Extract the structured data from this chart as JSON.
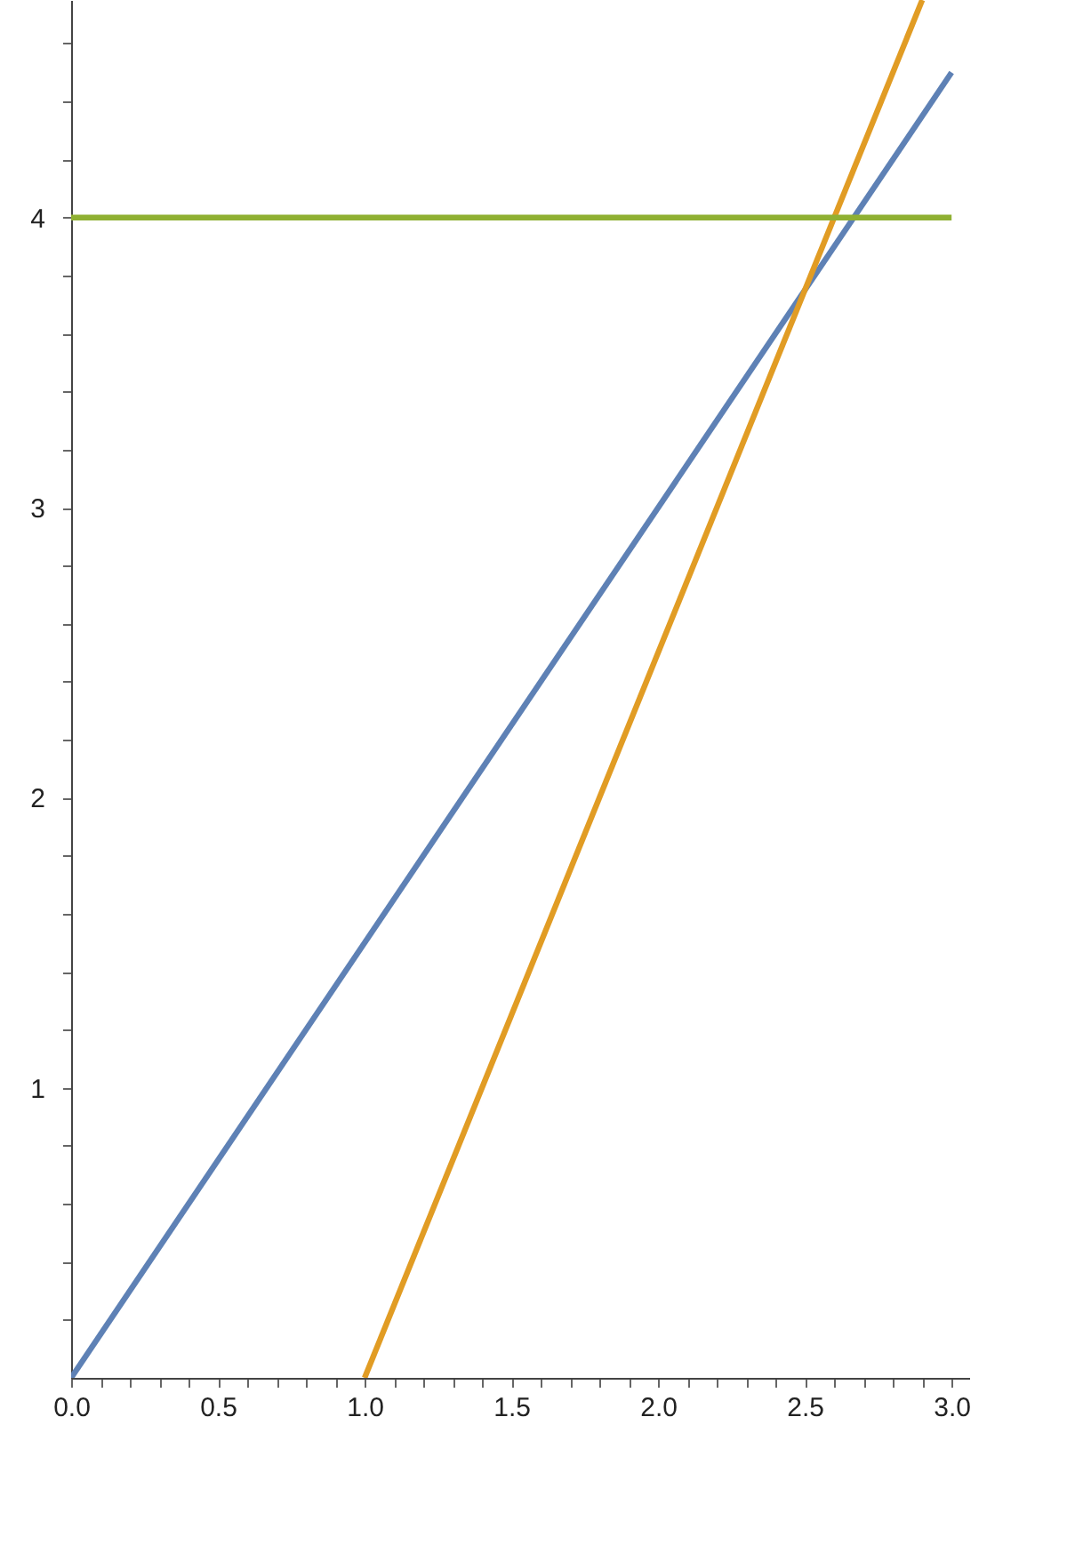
{
  "chart_data": {
    "type": "line",
    "xlim": [
      0,
      3.06
    ],
    "ylim": [
      0,
      4.75
    ],
    "xticks": [
      {
        "value": 0,
        "label": "0.0"
      },
      {
        "value": 0.1,
        "label": null
      },
      {
        "value": 0.2,
        "label": null
      },
      {
        "value": 0.3,
        "label": null
      },
      {
        "value": 0.4,
        "label": null
      },
      {
        "value": 0.5,
        "label": "0.5"
      },
      {
        "value": 0.6,
        "label": null
      },
      {
        "value": 0.7,
        "label": null
      },
      {
        "value": 0.8,
        "label": null
      },
      {
        "value": 0.9,
        "label": null
      },
      {
        "value": 1,
        "label": "1.0"
      },
      {
        "value": 1.1,
        "label": null
      },
      {
        "value": 1.2,
        "label": null
      },
      {
        "value": 1.3,
        "label": null
      },
      {
        "value": 1.4,
        "label": null
      },
      {
        "value": 1.5,
        "label": "1.5"
      },
      {
        "value": 1.6,
        "label": null
      },
      {
        "value": 1.7,
        "label": null
      },
      {
        "value": 1.8,
        "label": null
      },
      {
        "value": 1.9,
        "label": null
      },
      {
        "value": 2,
        "label": "2.0"
      },
      {
        "value": 2.1,
        "label": null
      },
      {
        "value": 2.2,
        "label": null
      },
      {
        "value": 2.3,
        "label": null
      },
      {
        "value": 2.4,
        "label": null
      },
      {
        "value": 2.5,
        "label": "2.5"
      },
      {
        "value": 2.6,
        "label": null
      },
      {
        "value": 2.7,
        "label": null
      },
      {
        "value": 2.8,
        "label": null
      },
      {
        "value": 2.9,
        "label": null
      },
      {
        "value": 3,
        "label": "3.0"
      }
    ],
    "yticks": [
      {
        "value": 0.2,
        "label": null
      },
      {
        "value": 0.4,
        "label": null
      },
      {
        "value": 0.6,
        "label": null
      },
      {
        "value": 0.8,
        "label": null
      },
      1,
      {
        "value": 1.2,
        "label": null
      },
      {
        "value": 1.4,
        "label": null
      },
      {
        "value": 1.6,
        "label": null
      },
      {
        "value": 1.8,
        "label": null
      },
      2,
      {
        "value": 2.2,
        "label": null
      },
      {
        "value": 2.4,
        "label": null
      },
      {
        "value": 2.6,
        "label": null
      },
      {
        "value": 2.8,
        "label": null
      },
      3,
      {
        "value": 3.2,
        "label": null
      },
      {
        "value": 3.4,
        "label": null
      },
      {
        "value": 3.6,
        "label": null
      },
      {
        "value": 3.8,
        "label": null
      },
      4,
      {
        "value": 4.2,
        "label": null
      },
      {
        "value": 4.4,
        "label": null
      },
      {
        "value": 4.6,
        "label": null
      }
    ],
    "grid": false,
    "marker": "none",
    "line_style": "solid",
    "series": [
      {
        "color": "#5e81b5",
        "x": [
          0,
          3
        ],
        "values": [
          0,
          4.5
        ]
      },
      {
        "color": "#e19c24",
        "x": [
          1,
          2.9
        ],
        "values": [
          0,
          4.75
        ]
      },
      {
        "color": "#8fb032",
        "x": [
          0,
          3
        ],
        "values": [
          4,
          4
        ]
      }
    ]
  }
}
